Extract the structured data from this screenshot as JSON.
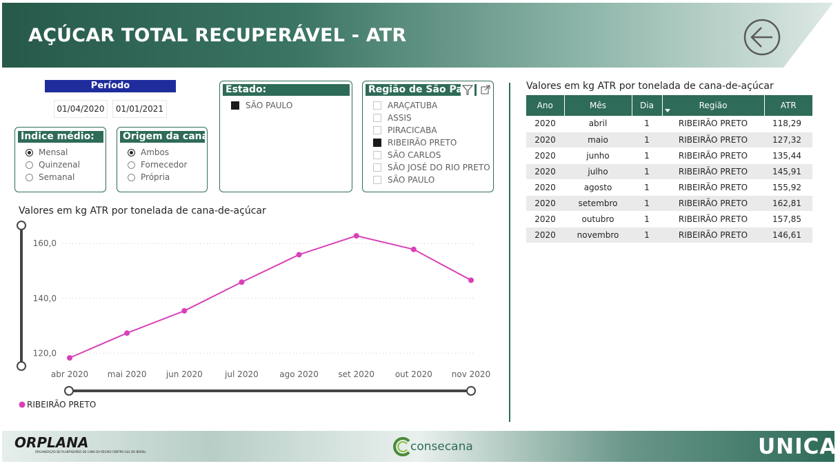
{
  "header": {
    "title": "AÇÚCAR TOTAL RECUPERÁVEL - ATR"
  },
  "periodo": {
    "label": "Período",
    "start": "01/04/2020",
    "end": "01/01/2021"
  },
  "indice": {
    "title": "Índice médio:",
    "options": [
      "Mensal",
      "Quinzenal",
      "Semanal"
    ],
    "selected": "Mensal"
  },
  "origem": {
    "title": "Origem da cana:",
    "options": [
      "Ambos",
      "Fornecedor",
      "Própria"
    ],
    "selected": "Ambos"
  },
  "estado": {
    "title": "Estado:",
    "items": [
      "SÃO PAULO"
    ],
    "selected": "SÃO PAULO"
  },
  "regiao": {
    "title": "Região de São Paulo",
    "items": [
      "ARAÇATUBA",
      "ASSIS",
      "PIRACICABA",
      "RIBEIRÃO PRETO",
      "SÃO CARLOS",
      "SÃO JOSÉ DO RIO PRETO",
      "SÃO PAULO"
    ],
    "selected": "RIBEIRÃO PRETO"
  },
  "chart_data": {
    "type": "line",
    "title": "Valores em kg ATR por tonelada de cana-de-açúcar",
    "categories": [
      "abr 2020",
      "mai 2020",
      "jun 2020",
      "jul 2020",
      "ago 2020",
      "set 2020",
      "out 2020",
      "nov 2020"
    ],
    "series": [
      {
        "name": "RIBEIRÃO PRETO",
        "values": [
          118.29,
          127.32,
          135.44,
          145.91,
          155.92,
          162.81,
          157.85,
          146.61
        ]
      }
    ],
    "y_ticks": [
      "120,0",
      "140,0",
      "160,0"
    ],
    "y_tick_values": [
      120,
      140,
      160
    ],
    "ylim": [
      115.3,
      166.6
    ],
    "xlabel": "",
    "ylabel": "",
    "grid": true,
    "legend": "bottom-left",
    "color": "#d940b8"
  },
  "table": {
    "title": "Valores em kg ATR por tonelada de cana-de-açúcar",
    "columns": [
      "Ano",
      "Mês",
      "Dia",
      "Região",
      "ATR"
    ],
    "rows": [
      [
        "2020",
        "abril",
        "1",
        "RIBEIRÃO PRETO",
        "118,29"
      ],
      [
        "2020",
        "maio",
        "1",
        "RIBEIRÃO PRETO",
        "127,32"
      ],
      [
        "2020",
        "junho",
        "1",
        "RIBEIRÃO PRETO",
        "135,44"
      ],
      [
        "2020",
        "julho",
        "1",
        "RIBEIRÃO PRETO",
        "145,91"
      ],
      [
        "2020",
        "agosto",
        "1",
        "RIBEIRÃO PRETO",
        "155,92"
      ],
      [
        "2020",
        "setembro",
        "1",
        "RIBEIRÃO PRETO",
        "162,81"
      ],
      [
        "2020",
        "outubro",
        "1",
        "RIBEIRÃO PRETO",
        "157,85"
      ],
      [
        "2020",
        "novembro",
        "1",
        "RIBEIRÃO PRETO",
        "146,61"
      ]
    ]
  },
  "footer": {
    "orplana": "ORPLANA",
    "orplana_sub": "ORGANIZAÇÃO DE PLANTADORES DE CANA DA REGIÃO CENTRO-SUL DO BRASIL",
    "consecana": "consecana",
    "unica": "UNICA"
  },
  "colors": {
    "primary": "#2e6b58",
    "periodo": "#1e2c9c",
    "series": "#d940b8"
  }
}
